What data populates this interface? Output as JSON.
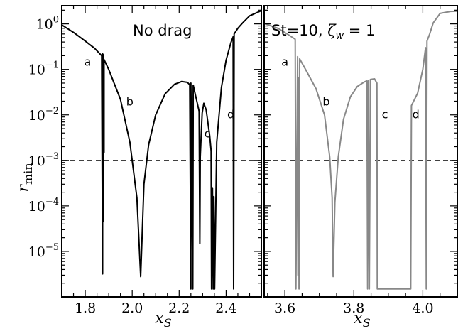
{
  "chart_data": [
    {
      "type": "line",
      "title": "No drag",
      "xlabel": "x_S",
      "ylabel": "r_min",
      "xlim": [
        1.7,
        2.55
      ],
      "ylim_log10": [
        -6.0,
        0.4
      ],
      "yscale": "log",
      "x_ticks": [
        1.8,
        2.0,
        2.2,
        2.4
      ],
      "x_tick_labels": [
        "1.8",
        "2.0",
        "2.2",
        "2.4"
      ],
      "y_ticks": [
        1,
        0.1,
        0.01,
        0.001,
        0.0001,
        1e-05
      ],
      "line_color": "#000000",
      "threshold": 0.001,
      "region_labels": [
        {
          "text": "a",
          "x": 1.81,
          "y": 0.12
        },
        {
          "text": "b",
          "x": 1.99,
          "y": 0.016
        },
        {
          "text": "c",
          "x": 2.32,
          "y": 0.0032
        },
        {
          "text": "d",
          "x": 2.42,
          "y": 0.0085
        }
      ],
      "series": [
        {
          "values": [
            [
              1.7,
              0.95
            ],
            [
              1.75,
              0.65
            ],
            [
              1.8,
              0.42
            ],
            [
              1.84,
              0.29
            ],
            [
              1.87,
              0.2
            ],
            [
              1.874,
              3.2e-06
            ],
            [
              1.874,
              0.22
            ],
            [
              1.877,
              4.5e-05
            ],
            [
              1.877,
              0.21
            ],
            [
              1.88,
              0.0015
            ],
            [
              1.88,
              0.165
            ],
            [
              1.9,
              0.1
            ],
            [
              1.95,
              0.022
            ],
            [
              1.99,
              0.0025
            ],
            [
              2.02,
              0.00015
            ],
            [
              2.036,
              2.8e-06
            ],
            [
              2.05,
              0.0003
            ],
            [
              2.07,
              0.0022
            ],
            [
              2.1,
              0.01
            ],
            [
              2.14,
              0.029
            ],
            [
              2.18,
              0.047
            ],
            [
              2.21,
              0.054
            ],
            [
              2.235,
              0.052
            ],
            [
              2.245,
              0.046
            ],
            [
              2.25,
              1.5e-06
            ],
            [
              2.25,
              0.05
            ],
            [
              2.258,
              1.5e-06
            ],
            [
              2.26,
              0.045
            ],
            [
              2.285,
              0.012
            ],
            [
              2.288,
              1.5e-05
            ],
            [
              2.29,
              0.0012
            ],
            [
              2.298,
              0.011
            ],
            [
              2.305,
              0.018
            ],
            [
              2.315,
              0.013
            ],
            [
              2.33,
              0.0035
            ],
            [
              2.336,
              0.0016
            ],
            [
              2.338,
              1.5e-06
            ],
            [
              2.342,
              0.00025
            ],
            [
              2.345,
              1.5e-06
            ],
            [
              2.348,
              0.00016
            ],
            [
              2.351,
              1.5e-06
            ],
            [
              2.36,
              0.0025
            ],
            [
              2.38,
              0.04
            ],
            [
              2.4,
              0.16
            ],
            [
              2.42,
              0.38
            ],
            [
              2.43,
              0.52
            ],
            [
              2.432,
              1.5e-06
            ],
            [
              2.434,
              0.6
            ],
            [
              2.45,
              0.8
            ],
            [
              2.47,
              1.05
            ],
            [
              2.5,
              1.5
            ],
            [
              2.55,
              1.95
            ]
          ]
        }
      ]
    },
    {
      "type": "line",
      "title": "St=10, ζ_w = 1",
      "xlabel": "x_S",
      "xlim": [
        3.54,
        4.1
      ],
      "ylim_log10": [
        -6.0,
        0.4
      ],
      "yscale": "log",
      "x_ticks": [
        3.6,
        3.8,
        4.0
      ],
      "x_tick_labels": [
        "3.6",
        "3.8",
        "4.0"
      ],
      "y_ticks": [
        1,
        0.1,
        0.01,
        0.001,
        0.0001,
        1e-05
      ],
      "line_color": "#888888",
      "threshold": 0.001,
      "region_labels": [
        {
          "text": "a",
          "x": 3.6,
          "y": 0.12
        },
        {
          "text": "b",
          "x": 3.72,
          "y": 0.016
        },
        {
          "text": "c",
          "x": 3.89,
          "y": 0.0085
        },
        {
          "text": "d",
          "x": 3.98,
          "y": 0.0085
        }
      ],
      "series": [
        {
          "values": [
            [
              3.54,
              1.02
            ],
            [
              3.58,
              0.8
            ],
            [
              3.61,
              0.58
            ],
            [
              3.63,
              0.46
            ],
            [
              3.632,
              1.5e-06
            ],
            [
              3.637,
              0.19
            ],
            [
              3.638,
              3e-06
            ],
            [
              3.64,
              0.065
            ],
            [
              3.641,
              1.5e-06
            ],
            [
              3.643,
              0.17
            ],
            [
              3.66,
              0.1
            ],
            [
              3.69,
              0.038
            ],
            [
              3.715,
              0.01
            ],
            [
              3.73,
              0.0012
            ],
            [
              3.737,
              0.00015
            ],
            [
              3.74,
              2.8e-06
            ],
            [
              3.745,
              0.00012
            ],
            [
              3.755,
              0.0012
            ],
            [
              3.77,
              0.008
            ],
            [
              3.79,
              0.025
            ],
            [
              3.81,
              0.042
            ],
            [
              3.83,
              0.053
            ],
            [
              3.838,
              0.056
            ],
            [
              3.84,
              1.5e-06
            ],
            [
              3.842,
              0.056
            ],
            [
              3.845,
              1.5e-06
            ],
            [
              3.848,
              0.06
            ],
            [
              3.86,
              0.062
            ],
            [
              3.867,
              0.05
            ],
            [
              3.868,
              1.5e-06
            ],
            [
              3.965,
              1.5e-06
            ],
            [
              3.967,
              0.016
            ],
            [
              3.985,
              0.03
            ],
            [
              4.0,
              0.1
            ],
            [
              4.008,
              0.3
            ],
            [
              4.01,
              1.5e-06
            ],
            [
              4.012,
              0.42
            ],
            [
              4.02,
              0.6
            ],
            [
              4.03,
              1.05
            ],
            [
              4.05,
              1.7
            ],
            [
              4.08,
              1.88
            ],
            [
              4.1,
              1.9
            ]
          ]
        }
      ]
    }
  ]
}
